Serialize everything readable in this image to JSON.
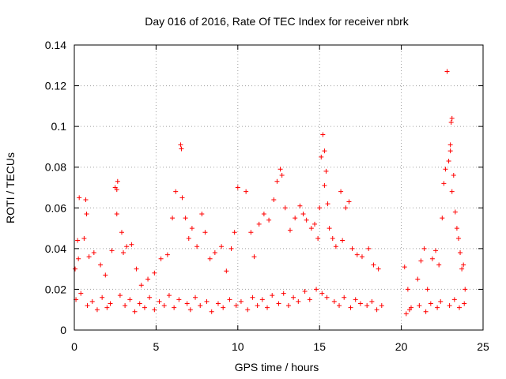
{
  "chart_data": {
    "type": "scatter",
    "title": "Day 016 of 2016, Rate Of TEC Index for receiver nbrk",
    "xlabel": "GPS time / hours",
    "ylabel": "ROTI / TECUs",
    "xlim": [
      0,
      25
    ],
    "ylim": [
      0,
      0.14
    ],
    "x_ticks": [
      0,
      5,
      10,
      15,
      20,
      25
    ],
    "x_tick_labels": [
      "0",
      "5",
      "10",
      "15",
      "20",
      "25"
    ],
    "y_ticks": [
      0,
      0.02,
      0.04,
      0.06,
      0.08,
      0.1,
      0.12,
      0.14
    ],
    "y_tick_labels": [
      "0",
      "0.02",
      "0.04",
      "0.06",
      "0.08",
      "0.1",
      "0.12",
      "0.14"
    ],
    "grid": true,
    "marker": "+",
    "color": "#ff0000",
    "series": [
      {
        "name": "ROTI",
        "points": [
          [
            0.3,
            0.065
          ],
          [
            0.7,
            0.064
          ],
          [
            0.75,
            0.057
          ],
          [
            0.6,
            0.045
          ],
          [
            0.2,
            0.044
          ],
          [
            0.9,
            0.036
          ],
          [
            1.2,
            0.038
          ],
          [
            1.6,
            0.032
          ],
          [
            1.9,
            0.027
          ],
          [
            2.3,
            0.039
          ],
          [
            2.5,
            0.07
          ],
          [
            2.6,
            0.069
          ],
          [
            2.65,
            0.073
          ],
          [
            2.6,
            0.057
          ],
          [
            2.9,
            0.048
          ],
          [
            3.0,
            0.038
          ],
          [
            3.2,
            0.041
          ],
          [
            3.5,
            0.042
          ],
          [
            3.8,
            0.03
          ],
          [
            4.1,
            0.022
          ],
          [
            4.5,
            0.025
          ],
          [
            4.9,
            0.028
          ],
          [
            5.3,
            0.035
          ],
          [
            5.7,
            0.037
          ],
          [
            6.0,
            0.055
          ],
          [
            6.2,
            0.068
          ],
          [
            6.5,
            0.091
          ],
          [
            6.55,
            0.089
          ],
          [
            6.6,
            0.065
          ],
          [
            6.8,
            0.055
          ],
          [
            7.0,
            0.045
          ],
          [
            7.2,
            0.05
          ],
          [
            7.5,
            0.041
          ],
          [
            7.8,
            0.057
          ],
          [
            8.0,
            0.048
          ],
          [
            8.3,
            0.035
          ],
          [
            8.6,
            0.038
          ],
          [
            9.0,
            0.041
          ],
          [
            9.3,
            0.029
          ],
          [
            9.6,
            0.04
          ],
          [
            9.8,
            0.048
          ],
          [
            10.0,
            0.07
          ],
          [
            10.5,
            0.068
          ],
          [
            10.8,
            0.048
          ],
          [
            11.0,
            0.036
          ],
          [
            11.3,
            0.052
          ],
          [
            11.6,
            0.057
          ],
          [
            11.9,
            0.054
          ],
          [
            12.2,
            0.064
          ],
          [
            12.4,
            0.073
          ],
          [
            12.6,
            0.079
          ],
          [
            12.7,
            0.076
          ],
          [
            12.9,
            0.06
          ],
          [
            13.2,
            0.049
          ],
          [
            13.5,
            0.055
          ],
          [
            13.8,
            0.061
          ],
          [
            14.0,
            0.057
          ],
          [
            14.2,
            0.054
          ],
          [
            14.5,
            0.05
          ],
          [
            14.7,
            0.052
          ],
          [
            14.9,
            0.045
          ],
          [
            15.0,
            0.06
          ],
          [
            15.1,
            0.085
          ],
          [
            15.2,
            0.096
          ],
          [
            15.3,
            0.088
          ],
          [
            15.4,
            0.078
          ],
          [
            15.3,
            0.071
          ],
          [
            15.5,
            0.062
          ],
          [
            15.6,
            0.05
          ],
          [
            15.8,
            0.045
          ],
          [
            16.0,
            0.041
          ],
          [
            16.3,
            0.068
          ],
          [
            16.6,
            0.06
          ],
          [
            16.8,
            0.063
          ],
          [
            16.4,
            0.044
          ],
          [
            17.0,
            0.04
          ],
          [
            17.3,
            0.037
          ],
          [
            17.6,
            0.036
          ],
          [
            18.0,
            0.04
          ],
          [
            18.3,
            0.032
          ],
          [
            18.6,
            0.03
          ],
          [
            18.8,
            0.012
          ],
          [
            20.2,
            0.031
          ],
          [
            20.4,
            0.02
          ],
          [
            20.5,
            0.01
          ],
          [
            21.0,
            0.025
          ],
          [
            21.2,
            0.034
          ],
          [
            21.4,
            0.04
          ],
          [
            21.6,
            0.02
          ],
          [
            21.9,
            0.035
          ],
          [
            22.1,
            0.039
          ],
          [
            22.3,
            0.032
          ],
          [
            22.5,
            0.055
          ],
          [
            22.6,
            0.072
          ],
          [
            22.7,
            0.079
          ],
          [
            22.8,
            0.127
          ],
          [
            22.9,
            0.083
          ],
          [
            23.0,
            0.091
          ],
          [
            23.05,
            0.102
          ],
          [
            23.1,
            0.104
          ],
          [
            23.0,
            0.088
          ],
          [
            23.2,
            0.076
          ],
          [
            23.1,
            0.068
          ],
          [
            23.3,
            0.058
          ],
          [
            23.4,
            0.05
          ],
          [
            23.5,
            0.045
          ],
          [
            23.6,
            0.038
          ],
          [
            23.7,
            0.03
          ],
          [
            23.8,
            0.032
          ],
          [
            23.9,
            0.02
          ],
          [
            0.1,
            0.015
          ],
          [
            0.4,
            0.018
          ],
          [
            0.8,
            0.012
          ],
          [
            1.1,
            0.014
          ],
          [
            1.4,
            0.01
          ],
          [
            1.7,
            0.016
          ],
          [
            2.0,
            0.011
          ],
          [
            2.2,
            0.013
          ],
          [
            2.8,
            0.017
          ],
          [
            3.1,
            0.012
          ],
          [
            3.4,
            0.015
          ],
          [
            3.7,
            0.009
          ],
          [
            4.0,
            0.013
          ],
          [
            4.3,
            0.011
          ],
          [
            4.6,
            0.016
          ],
          [
            4.9,
            0.01
          ],
          [
            5.2,
            0.014
          ],
          [
            5.5,
            0.012
          ],
          [
            5.8,
            0.017
          ],
          [
            6.1,
            0.011
          ],
          [
            6.4,
            0.015
          ],
          [
            6.9,
            0.013
          ],
          [
            7.1,
            0.01
          ],
          [
            7.4,
            0.016
          ],
          [
            7.7,
            0.012
          ],
          [
            8.1,
            0.014
          ],
          [
            8.4,
            0.009
          ],
          [
            8.8,
            0.013
          ],
          [
            9.1,
            0.011
          ],
          [
            9.5,
            0.015
          ],
          [
            9.9,
            0.012
          ],
          [
            10.2,
            0.014
          ],
          [
            10.6,
            0.01
          ],
          [
            10.9,
            0.016
          ],
          [
            11.2,
            0.012
          ],
          [
            11.5,
            0.015
          ],
          [
            11.8,
            0.011
          ],
          [
            12.1,
            0.017
          ],
          [
            12.5,
            0.013
          ],
          [
            12.8,
            0.018
          ],
          [
            13.1,
            0.012
          ],
          [
            13.4,
            0.016
          ],
          [
            13.7,
            0.014
          ],
          [
            14.1,
            0.019
          ],
          [
            14.4,
            0.015
          ],
          [
            14.8,
            0.02
          ],
          [
            15.15,
            0.018
          ],
          [
            15.45,
            0.016
          ],
          [
            15.9,
            0.014
          ],
          [
            16.2,
            0.012
          ],
          [
            16.5,
            0.016
          ],
          [
            16.9,
            0.011
          ],
          [
            17.2,
            0.015
          ],
          [
            17.5,
            0.013
          ],
          [
            17.9,
            0.012
          ],
          [
            18.2,
            0.014
          ],
          [
            18.5,
            0.01
          ],
          [
            20.3,
            0.008
          ],
          [
            20.6,
            0.011
          ],
          [
            21.1,
            0.012
          ],
          [
            21.5,
            0.009
          ],
          [
            21.8,
            0.013
          ],
          [
            22.2,
            0.011
          ],
          [
            22.4,
            0.014
          ],
          [
            22.95,
            0.012
          ],
          [
            23.25,
            0.015
          ],
          [
            23.55,
            0.011
          ],
          [
            23.85,
            0.013
          ],
          [
            0.05,
            0.03
          ],
          [
            0.25,
            0.035
          ]
        ]
      }
    ]
  }
}
